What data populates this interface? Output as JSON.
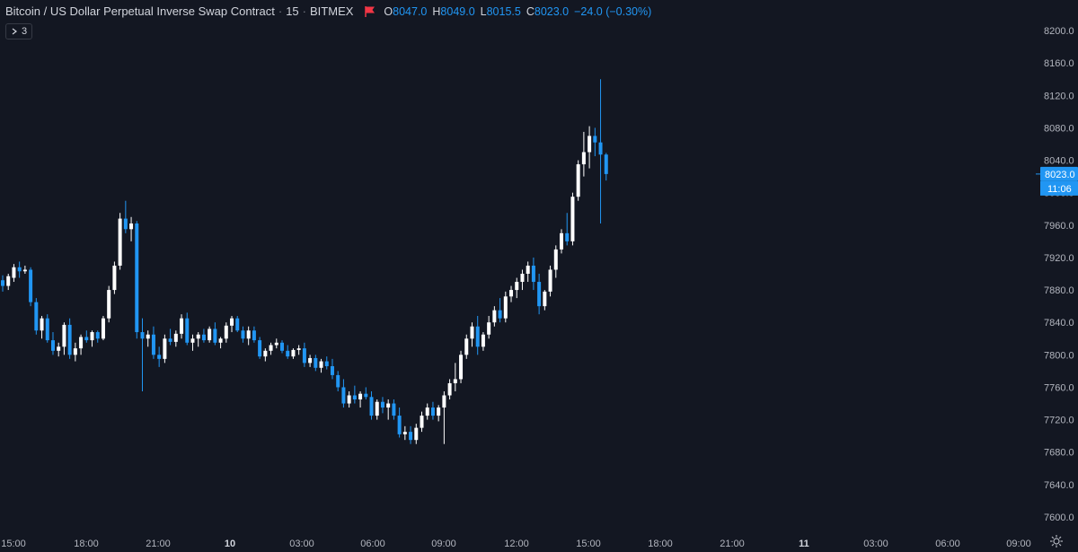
{
  "header": {
    "symbol_title": "Bitcoin / US Dollar Perpetual Inverse Swap Contract",
    "interval": "15",
    "exchange": "BITMEX",
    "ohlc": {
      "o_label": "O",
      "o_value": "8047.0",
      "h_label": "H",
      "h_value": "8049.0",
      "l_label": "L",
      "l_value": "8015.5",
      "c_label": "C",
      "c_value": "8023.0"
    },
    "change": "−24.0 (−0.30%)",
    "flag_color": "#f23645",
    "collapse_count": "3"
  },
  "colors": {
    "background": "#131722",
    "up": "#ffffff",
    "down": "#2196f3",
    "axis_text": "#b2b5be",
    "price_tag": "#2196f3"
  },
  "icons": {
    "flag": "flag-icon",
    "collapse": "chevron-right-icon",
    "settings": "gear-icon"
  },
  "chart_data": {
    "type": "candlestick",
    "title": "Bitcoin / US Dollar Perpetual Inverse Swap Contract",
    "interval": "15",
    "ylim": [
      7600,
      8200
    ],
    "y_ticks": [
      "8200.0",
      "8160.0",
      "8120.0",
      "8080.0",
      "8040.0",
      "8000.0",
      "7960.0",
      "7920.0",
      "7880.0",
      "7840.0",
      "7800.0",
      "7760.0",
      "7720.0",
      "7680.0",
      "7640.0",
      "7600.0"
    ],
    "x_ticks": [
      {
        "label": "15:00",
        "bold": false
      },
      {
        "label": "18:00",
        "bold": false
      },
      {
        "label": "21:00",
        "bold": false
      },
      {
        "label": "10",
        "bold": true
      },
      {
        "label": "03:00",
        "bold": false
      },
      {
        "label": "06:00",
        "bold": false
      },
      {
        "label": "09:00",
        "bold": false
      },
      {
        "label": "12:00",
        "bold": false
      },
      {
        "label": "15:00",
        "bold": false
      },
      {
        "label": "18:00",
        "bold": false
      },
      {
        "label": "21:00",
        "bold": false
      },
      {
        "label": "11",
        "bold": true
      },
      {
        "label": "03:00",
        "bold": false
      },
      {
        "label": "06:00",
        "bold": false
      },
      {
        "label": "09:00",
        "bold": false
      }
    ],
    "last_price": "8023.0",
    "countdown": "11:06",
    "candles": [
      [
        7892,
        7898,
        7878,
        7885
      ],
      [
        7885,
        7900,
        7880,
        7897
      ],
      [
        7895,
        7912,
        7890,
        7908
      ],
      [
        7908,
        7915,
        7895,
        7903
      ],
      [
        7903,
        7910,
        7900,
        7905
      ],
      [
        7905,
        7908,
        7860,
        7865
      ],
      [
        7865,
        7870,
        7825,
        7830
      ],
      [
        7830,
        7848,
        7820,
        7845
      ],
      [
        7845,
        7850,
        7815,
        7818
      ],
      [
        7818,
        7828,
        7800,
        7805
      ],
      [
        7805,
        7815,
        7798,
        7810
      ],
      [
        7810,
        7840,
        7800,
        7837
      ],
      [
        7837,
        7845,
        7795,
        7800
      ],
      [
        7800,
        7815,
        7792,
        7808
      ],
      [
        7808,
        7825,
        7800,
        7822
      ],
      [
        7822,
        7830,
        7815,
        7818
      ],
      [
        7818,
        7830,
        7810,
        7828
      ],
      [
        7828,
        7830,
        7815,
        7820
      ],
      [
        7820,
        7848,
        7818,
        7845
      ],
      [
        7845,
        7885,
        7840,
        7880
      ],
      [
        7880,
        7915,
        7875,
        7910
      ],
      [
        7910,
        7975,
        7905,
        7968
      ],
      [
        7968,
        7990,
        7950,
        7955
      ],
      [
        7955,
        7970,
        7940,
        7962
      ],
      [
        7962,
        7965,
        7820,
        7828
      ],
      [
        7828,
        7845,
        7755,
        7820
      ],
      [
        7820,
        7830,
        7810,
        7825
      ],
      [
        7825,
        7835,
        7795,
        7800
      ],
      [
        7800,
        7810,
        7785,
        7795
      ],
      [
        7795,
        7825,
        7790,
        7820
      ],
      [
        7820,
        7832,
        7812,
        7816
      ],
      [
        7816,
        7830,
        7810,
        7826
      ],
      [
        7826,
        7850,
        7820,
        7845
      ],
      [
        7845,
        7852,
        7812,
        7815
      ],
      [
        7815,
        7825,
        7805,
        7820
      ],
      [
        7820,
        7828,
        7810,
        7825
      ],
      [
        7825,
        7832,
        7815,
        7818
      ],
      [
        7818,
        7835,
        7815,
        7832
      ],
      [
        7832,
        7840,
        7812,
        7815
      ],
      [
        7815,
        7822,
        7808,
        7820
      ],
      [
        7820,
        7840,
        7815,
        7836
      ],
      [
        7836,
        7848,
        7828,
        7845
      ],
      [
        7845,
        7848,
        7828,
        7830
      ],
      [
        7830,
        7835,
        7815,
        7820
      ],
      [
        7820,
        7835,
        7812,
        7830
      ],
      [
        7830,
        7835,
        7815,
        7818
      ],
      [
        7818,
        7822,
        7795,
        7798
      ],
      [
        7798,
        7808,
        7792,
        7805
      ],
      [
        7805,
        7815,
        7800,
        7812
      ],
      [
        7812,
        7820,
        7808,
        7815
      ],
      [
        7815,
        7818,
        7802,
        7805
      ],
      [
        7805,
        7812,
        7795,
        7798
      ],
      [
        7798,
        7808,
        7795,
        7806
      ],
      [
        7806,
        7812,
        7800,
        7808
      ],
      [
        7808,
        7815,
        7785,
        7790
      ],
      [
        7790,
        7800,
        7785,
        7796
      ],
      [
        7796,
        7800,
        7780,
        7784
      ],
      [
        7784,
        7795,
        7778,
        7792
      ],
      [
        7792,
        7798,
        7782,
        7786
      ],
      [
        7786,
        7795,
        7770,
        7775
      ],
      [
        7775,
        7780,
        7755,
        7760
      ],
      [
        7760,
        7770,
        7735,
        7740
      ],
      [
        7740,
        7755,
        7735,
        7750
      ],
      [
        7750,
        7762,
        7740,
        7745
      ],
      [
        7745,
        7755,
        7735,
        7752
      ],
      [
        7752,
        7760,
        7745,
        7748
      ],
      [
        7748,
        7755,
        7720,
        7725
      ],
      [
        7725,
        7745,
        7720,
        7742
      ],
      [
        7742,
        7748,
        7728,
        7735
      ],
      [
        7735,
        7745,
        7720,
        7740
      ],
      [
        7740,
        7745,
        7720,
        7725
      ],
      [
        7725,
        7735,
        7698,
        7702
      ],
      [
        7702,
        7712,
        7695,
        7705
      ],
      [
        7705,
        7712,
        7690,
        7695
      ],
      [
        7695,
        7715,
        7690,
        7710
      ],
      [
        7710,
        7730,
        7705,
        7725
      ],
      [
        7725,
        7740,
        7720,
        7735
      ],
      [
        7735,
        7742,
        7720,
        7725
      ],
      [
        7725,
        7738,
        7718,
        7735
      ],
      [
        7735,
        7755,
        7690,
        7750
      ],
      [
        7750,
        7770,
        7745,
        7765
      ],
      [
        7765,
        7790,
        7755,
        7770
      ],
      [
        7770,
        7805,
        7765,
        7800
      ],
      [
        7800,
        7825,
        7795,
        7820
      ],
      [
        7820,
        7840,
        7810,
        7835
      ],
      [
        7835,
        7848,
        7800,
        7810
      ],
      [
        7810,
        7828,
        7805,
        7825
      ],
      [
        7825,
        7848,
        7820,
        7840
      ],
      [
        7840,
        7860,
        7835,
        7855
      ],
      [
        7855,
        7870,
        7840,
        7845
      ],
      [
        7845,
        7878,
        7840,
        7872
      ],
      [
        7872,
        7885,
        7865,
        7880
      ],
      [
        7880,
        7895,
        7870,
        7890
      ],
      [
        7890,
        7905,
        7880,
        7900
      ],
      [
        7900,
        7915,
        7890,
        7910
      ],
      [
        7910,
        7920,
        7880,
        7890
      ],
      [
        7890,
        7900,
        7850,
        7860
      ],
      [
        7860,
        7880,
        7855,
        7878
      ],
      [
        7878,
        7910,
        7872,
        7905
      ],
      [
        7905,
        7935,
        7895,
        7930
      ],
      [
        7930,
        7955,
        7925,
        7950
      ],
      [
        7950,
        7975,
        7935,
        7940
      ],
      [
        7940,
        8000,
        7935,
        7995
      ],
      [
        7995,
        8040,
        7990,
        8035
      ],
      [
        8035,
        8075,
        8020,
        8050
      ],
      [
        8050,
        8082,
        8030,
        8070
      ],
      [
        8070,
        8080,
        8045,
        8062
      ],
      [
        8062,
        8140,
        7962,
        8047
      ],
      [
        8047,
        8049,
        8015,
        8023
      ]
    ]
  },
  "settings_icon_name": "gear-icon"
}
